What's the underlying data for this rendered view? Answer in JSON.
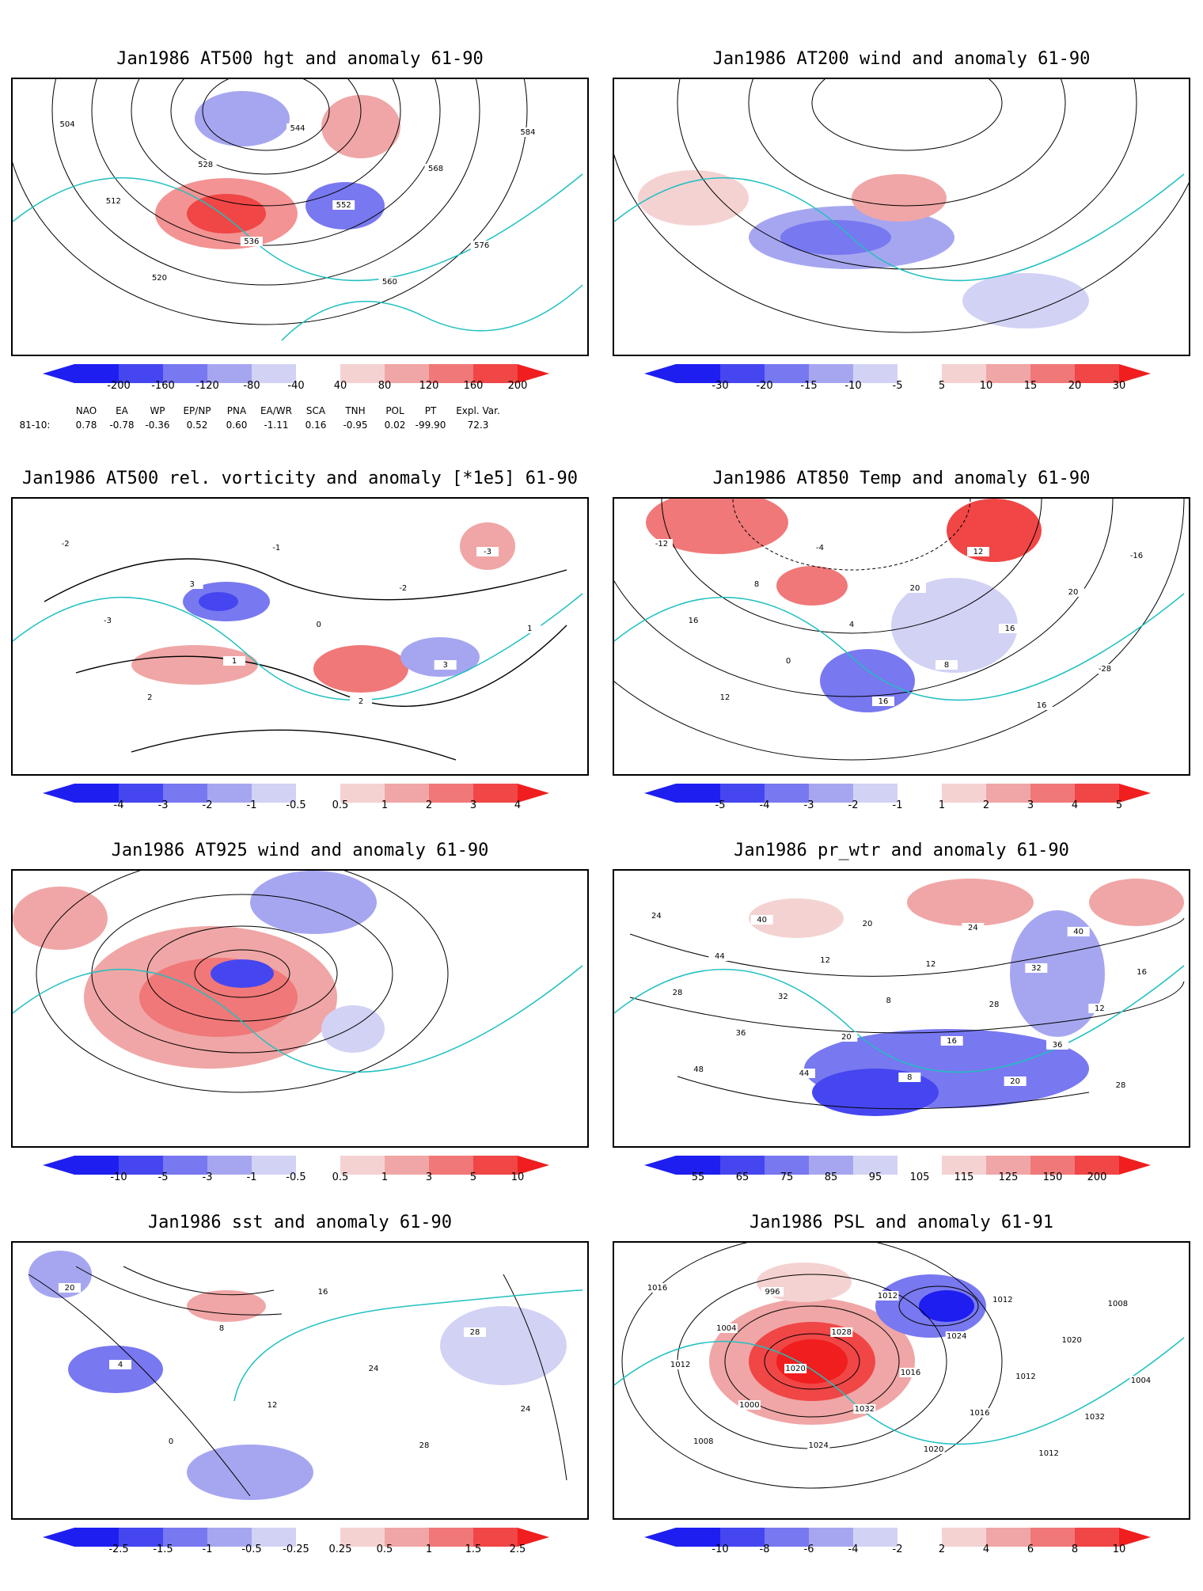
{
  "panels": [
    {
      "title": "Jan1986 AT500 hgt and anomaly 61-90",
      "colorbar": {
        "ticks": [
          "-200",
          "-160",
          "-120",
          "-80",
          "-40",
          "40",
          "80",
          "120",
          "160",
          "200"
        ]
      },
      "contour_labels": [
        "504",
        "512",
        "520",
        "528",
        "536",
        "544",
        "552",
        "560",
        "568",
        "576",
        "584"
      ]
    },
    {
      "title": "Jan1986 AT200 wind and anomaly 61-90",
      "colorbar": {
        "ticks": [
          "-30",
          "-20",
          "-15",
          "-10",
          "-5",
          "5",
          "10",
          "15",
          "20",
          "30"
        ]
      },
      "contour_labels": []
    },
    {
      "title": "Jan1986 AT500 rel. vorticity and anomaly [*1e5] 61-90",
      "colorbar": {
        "ticks": [
          "-4",
          "-3",
          "-2",
          "-1",
          "-0.5",
          "0.5",
          "1",
          "2",
          "3",
          "4"
        ]
      },
      "contour_labels": [
        "-2",
        "-3",
        "2",
        "3",
        "1",
        "-1",
        "0",
        "2",
        "-2",
        "3",
        "-3",
        "1"
      ]
    },
    {
      "title": "Jan1986 AT850 Temp and anomaly 61-90",
      "colorbar": {
        "ticks": [
          "-5",
          "-4",
          "-3",
          "-2",
          "-1",
          "1",
          "2",
          "3",
          "4",
          "5"
        ]
      },
      "contour_labels": [
        "-12",
        "16",
        "12",
        "8",
        "0",
        "-4",
        "4",
        "16",
        "20",
        "8",
        "12",
        "16",
        "16",
        "20",
        "-28",
        "-16"
      ]
    },
    {
      "title": "Jan1986 AT925 wind and anomaly 61-90",
      "colorbar": {
        "ticks": [
          "-10",
          "-5",
          "-3",
          "-1",
          "-0.5",
          "0.5",
          "1",
          "3",
          "5",
          "10"
        ]
      },
      "contour_labels": []
    },
    {
      "title": "Jan1986 pr_wtr and anomaly 61-90",
      "colorbar": {
        "ticks": [
          "55",
          "65",
          "75",
          "85",
          "95",
          "105",
          "115",
          "125",
          "150",
          "200"
        ]
      },
      "contour_labels": [
        "24",
        "28",
        "48",
        "44",
        "36",
        "40",
        "32",
        "44",
        "12",
        "20",
        "20",
        "8",
        "8",
        "12",
        "16",
        "24",
        "28",
        "20",
        "32",
        "36",
        "40",
        "12",
        "28",
        "16"
      ]
    },
    {
      "title": "Jan1986 sst and anomaly 61-90",
      "colorbar": {
        "ticks": [
          "-2.5",
          "-1.5",
          "-1",
          "-0.5",
          "-0.25",
          "0.25",
          "0.5",
          "1",
          "1.5",
          "2.5"
        ]
      },
      "contour_labels": [
        "20",
        "4",
        "0",
        "8",
        "12",
        "16",
        "24",
        "28",
        "28",
        "24"
      ]
    },
    {
      "title": "Jan1986 PSL and anomaly 61-91",
      "colorbar": {
        "ticks": [
          "-10",
          "-8",
          "-6",
          "-4",
          "-2",
          "2",
          "4",
          "6",
          "8",
          "10"
        ]
      },
      "contour_labels": [
        "1016",
        "1012",
        "1008",
        "1004",
        "1000",
        "996",
        "1020",
        "1024",
        "1028",
        "1032",
        "1012",
        "1016",
        "1020",
        "1024",
        "1016",
        "1012",
        "1012",
        "1012",
        "1020",
        "1032",
        "1008",
        "1004"
      ]
    }
  ],
  "teleconnections": {
    "headers": [
      "NAO",
      "EA",
      "WP",
      "EP/NP",
      "PNA",
      "EA/WR",
      "SCA",
      "TNH",
      "POL",
      "PT",
      "Expl. Var."
    ],
    "row_label": "81-10:",
    "values": [
      "0.78",
      "-0.78",
      "-0.36",
      "0.52",
      "0.60",
      "-1.11",
      "0.16",
      "-0.95",
      "0.02",
      "-99.90",
      "72.3"
    ]
  },
  "colors": {
    "negative": [
      "#1e1ef0",
      "#4646f0",
      "#7878f0",
      "#a6a6f0",
      "#d2d2f5"
    ],
    "positive": [
      "#f5d2d2",
      "#f0a6a6",
      "#f07878",
      "#f04646",
      "#f01e1e"
    ],
    "coast": "#20c0c0"
  }
}
